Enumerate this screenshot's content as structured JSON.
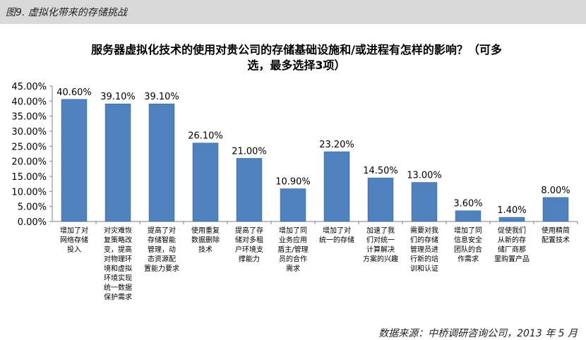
{
  "header": {
    "figure_label": "图9. 虚拟化带来的存储挑战"
  },
  "source_text": "数据来源：中桥调研咨询公司，2013 年 5 月",
  "colors": {
    "bar": "#4f81bd",
    "bar_edge": "#3a6493",
    "axis": "#808080"
  },
  "chart_data": {
    "type": "bar",
    "title": "服务器虚拟化技术的使用对贵公司的存储基础设施和/或进程有怎样的影响？（可多选，最多选择3项）",
    "title_lines": [
      "服务器虚拟化技术的使用对贵公司的存储基础设施和/或进程有怎样的影响？（可多",
      "选，最多选择3项）"
    ],
    "xlabel": "",
    "ylabel": "",
    "ylim": [
      0,
      45
    ],
    "yticks": [
      "0.00%",
      "5.00%",
      "10.00%",
      "15.00%",
      "20.00%",
      "25.00%",
      "30.00%",
      "35.00%",
      "40.00%",
      "45.00%"
    ],
    "grid": false,
    "legend": "none",
    "categories": [
      "增加了对网络存储投入",
      "对灾难恢复策略改变，提高对物理环境和虚拟环境实现统一数据保护需求",
      "提高了对存储智能管理，动态资源配置能力要求",
      "使用重复数据删除技术",
      "提高了存储对多租户环境支撑能力",
      "增加了同业务应用盾主/管理员的合作需求",
      "增加了对统一的存储",
      "加速了我们对统一计算解决方案的兴趣",
      "需要对我们的存储管理员进行新的培训和认证",
      "增加了同信息安全团队的合作需求",
      "促使我们从新的存储厂商那里购置产品",
      "使用精简配置技术"
    ],
    "category_lines": [
      [
        "增加了对",
        "网络存储",
        "投入"
      ],
      [
        "对灾难恢",
        "复策略改",
        "变，提高",
        "对物理环",
        "境和虚拟",
        "环境实现",
        "统一数据",
        "保护需求"
      ],
      [
        "提高了对",
        "存储智能",
        "管理，动",
        "态资源配",
        "置能力要求"
      ],
      [
        "使用重复",
        "数据删除",
        "技术"
      ],
      [
        "提高了存",
        "储对多租",
        "户环境支",
        "撑能力"
      ],
      [
        "增加了同",
        "业务应用",
        "盾主/管理",
        "员的合作",
        "需求"
      ],
      [
        "增加了对",
        "统一的存储"
      ],
      [
        "加速了我",
        "们对统一",
        "计算解决",
        "方案的兴趣"
      ],
      [
        "需要对我",
        "们的存储",
        "管理员进",
        "行新的培",
        "训和认证"
      ],
      [
        "增加了同",
        "信息安全",
        "团队的合",
        "作需求"
      ],
      [
        "促使我们",
        "从新的存",
        "储厂商那",
        "里购置产品"
      ],
      [
        "使用精简",
        "配置技术"
      ]
    ],
    "values": [
      40.6,
      39.1,
      39.1,
      26.1,
      21.0,
      10.9,
      23.2,
      14.5,
      13.0,
      3.6,
      1.4,
      8.0
    ],
    "value_labels": [
      "40.60%",
      "39.10%",
      "39.10%",
      "26.10%",
      "21.00%",
      "10.90%",
      "23.20%",
      "14.50%",
      "13.00%",
      "3.60%",
      "1.40%",
      "8.00%"
    ]
  }
}
